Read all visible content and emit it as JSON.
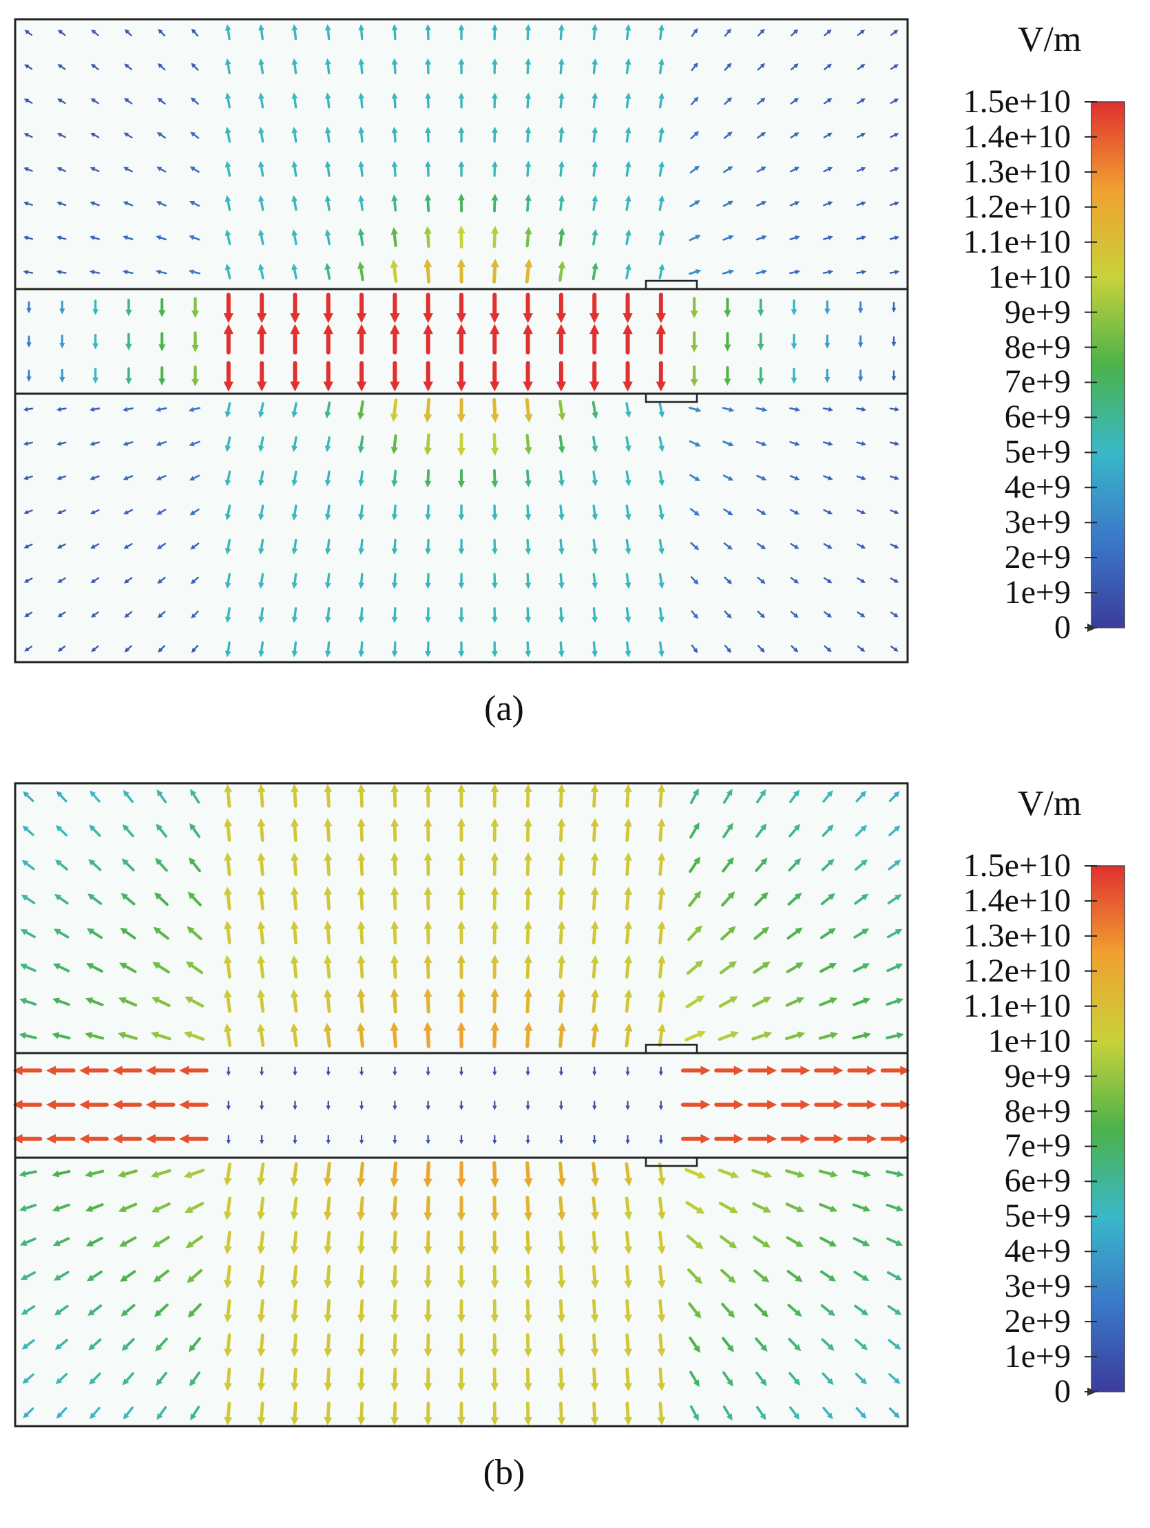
{
  "panels": [
    {
      "id": "a",
      "caption": "(a)",
      "unit": "V/m",
      "colorbar_ticks": [
        "1.5e+10",
        "1.4e+10",
        "1.3e+10",
        "1.2e+10",
        "1.1e+10",
        "1e+10",
        "9e+9",
        "8e+9",
        "7e+9",
        "6e+9",
        "5e+9",
        "4e+9",
        "3e+9",
        "2e+9",
        "1e+9",
        "0"
      ],
      "field_pattern": "transverse dipole field: strong vertical field (red, ~1.5e+10) inside the central layer, weak field outside"
    },
    {
      "id": "b",
      "caption": "(b)",
      "unit": "V/m",
      "colorbar_ticks": [
        "1.5e+10",
        "1.4e+10",
        "1.3e+10",
        "1.2e+10",
        "1.1e+10",
        "1e+10",
        "9e+9",
        "8e+9",
        "7e+9",
        "6e+9",
        "5e+9",
        "4e+9",
        "3e+9",
        "2e+9",
        "1e+9",
        "0"
      ],
      "field_pattern": "strong field (red/orange) outside the central layer, weak field inside; horizontal field along the layer edges"
    }
  ],
  "colormap": [
    "#3b3c9b",
    "#3a78c8",
    "#39b8c8",
    "#4cb24a",
    "#c8d23a",
    "#f0a030",
    "#e03030"
  ]
}
